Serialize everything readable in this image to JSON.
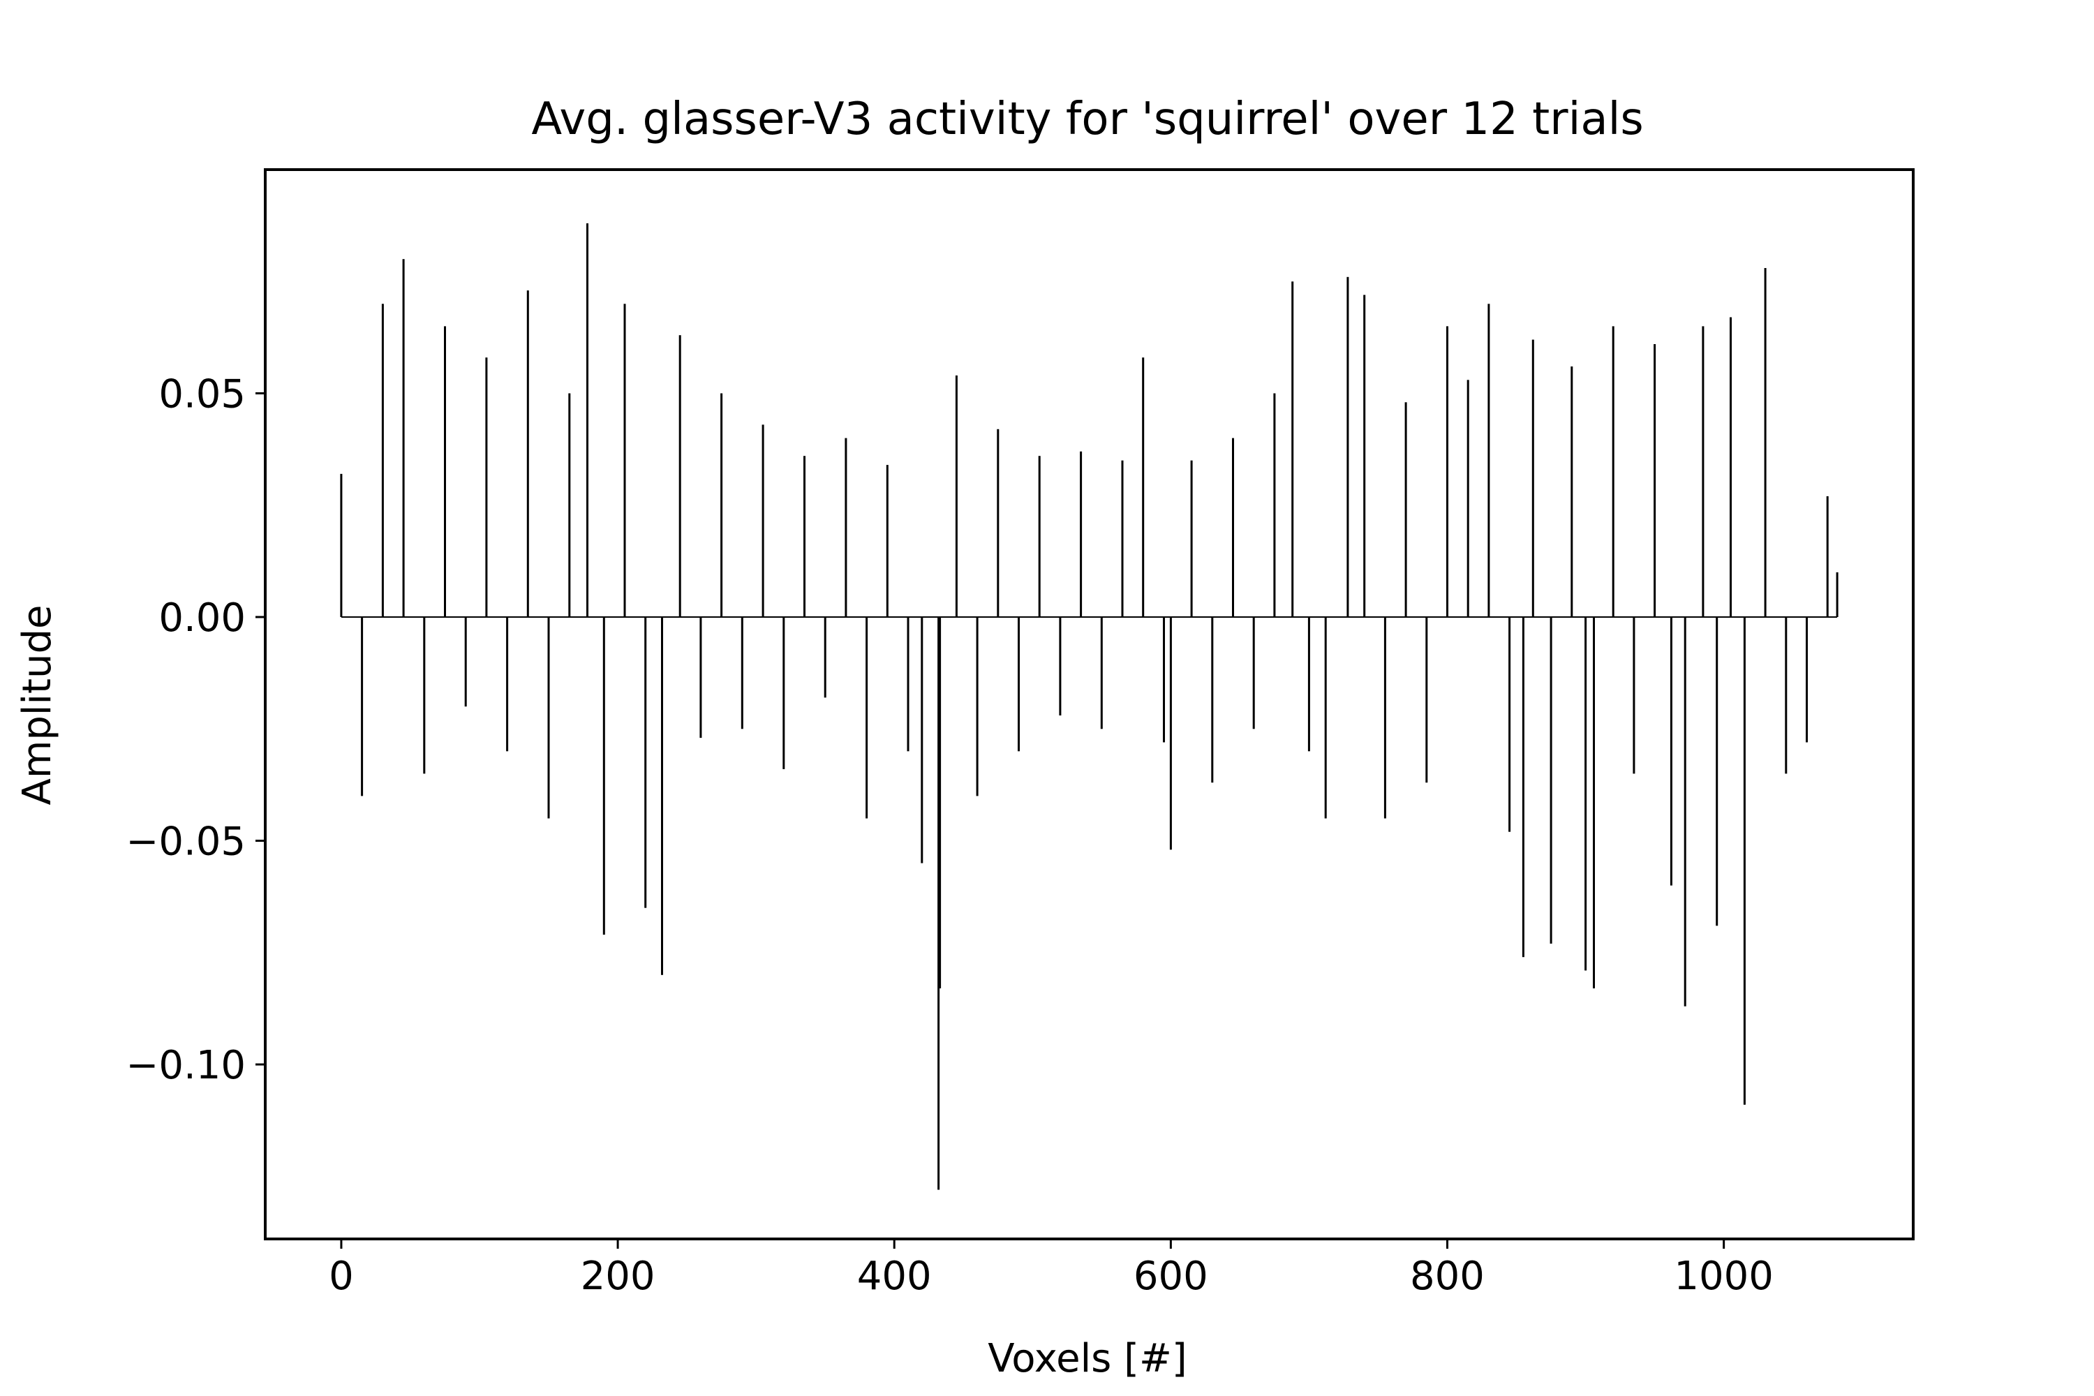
{
  "chart_data": {
    "type": "bar",
    "title": "Avg. glasser-V3 activity for 'squirrel' over 12 trials",
    "xlabel": "Voxels [#]",
    "ylabel": "Amplitude",
    "xlim": [
      -55,
      1137
    ],
    "ylim": [
      -0.139,
      0.1
    ],
    "xticks": [
      0,
      200,
      400,
      600,
      800,
      1000
    ],
    "xtick_labels": [
      "0",
      "200",
      "400",
      "600",
      "800",
      "1000"
    ],
    "yticks": [
      0.05,
      0.0,
      -0.05,
      -0.1
    ],
    "ytick_labels": [
      "0.05",
      "0.00",
      "−0.05",
      "−0.10"
    ],
    "grid": false,
    "legend": "none",
    "bar_color": "#000000",
    "n_voxels": 1083,
    "x": [
      0,
      15,
      30,
      45,
      60,
      75,
      90,
      105,
      120,
      135,
      150,
      165,
      178,
      190,
      205,
      220,
      232,
      245,
      260,
      275,
      290,
      305,
      320,
      335,
      350,
      365,
      380,
      395,
      410,
      420,
      432,
      433,
      445,
      460,
      475,
      490,
      505,
      520,
      535,
      550,
      565,
      580,
      595,
      600,
      615,
      630,
      645,
      660,
      675,
      688,
      700,
      712,
      728,
      740,
      755,
      770,
      785,
      800,
      815,
      830,
      845,
      855,
      862,
      875,
      890,
      900,
      906,
      920,
      935,
      950,
      962,
      972,
      985,
      995,
      1005,
      1015,
      1030,
      1045,
      1060,
      1075,
      1082
    ],
    "values": [
      0.032,
      -0.04,
      0.07,
      0.08,
      -0.035,
      0.065,
      -0.02,
      0.058,
      -0.03,
      0.073,
      -0.045,
      0.05,
      0.088,
      -0.071,
      0.07,
      -0.065,
      -0.08,
      0.063,
      -0.027,
      0.05,
      -0.025,
      0.043,
      -0.034,
      0.036,
      -0.018,
      0.04,
      -0.045,
      0.034,
      -0.03,
      -0.055,
      -0.128,
      -0.083,
      0.054,
      -0.04,
      0.042,
      -0.03,
      0.036,
      -0.022,
      0.037,
      -0.025,
      0.035,
      0.058,
      -0.028,
      -0.052,
      0.035,
      -0.037,
      0.04,
      -0.025,
      0.05,
      0.075,
      -0.03,
      -0.045,
      0.076,
      0.072,
      -0.045,
      0.048,
      -0.037,
      0.065,
      0.053,
      0.07,
      -0.048,
      -0.076,
      0.062,
      -0.073,
      0.056,
      -0.079,
      -0.083,
      0.065,
      -0.035,
      0.061,
      -0.06,
      -0.087,
      0.065,
      -0.069,
      0.067,
      -0.109,
      0.078,
      -0.035,
      -0.028,
      0.027,
      0.01
    ]
  }
}
